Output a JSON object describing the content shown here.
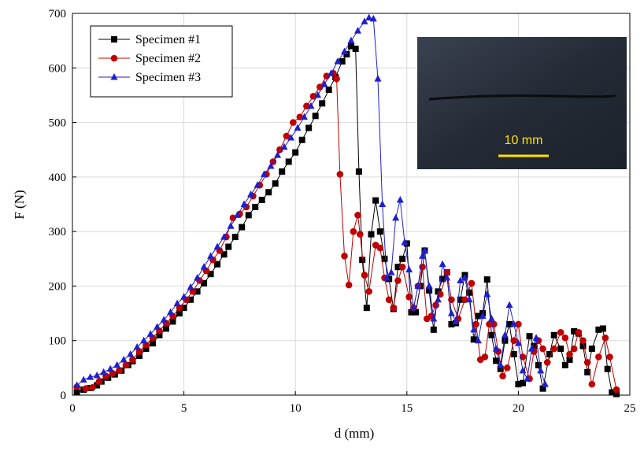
{
  "chart_data": {
    "type": "line",
    "x_label": "d (mm)",
    "y_label": "F (N)",
    "xlim": [
      0,
      25
    ],
    "xticks": [
      0,
      5,
      10,
      15,
      20,
      25
    ],
    "ylim": [
      0,
      700
    ],
    "yticks": [
      0,
      100,
      200,
      300,
      400,
      500,
      600,
      700
    ],
    "grid": true,
    "legend": "upper left",
    "inset_label": "10 mm",
    "series": [
      {
        "name": "Specimen #1",
        "color": "#000000",
        "marker": "square",
        "x": [
          0.2,
          0.5,
          0.8,
          1.1,
          1.3,
          1.6,
          1.9,
          2.2,
          2.5,
          2.7,
          3.0,
          3.3,
          3.6,
          3.9,
          4.2,
          4.5,
          4.8,
          5.0,
          5.3,
          5.6,
          5.9,
          6.2,
          6.5,
          6.8,
          7.0,
          7.3,
          7.6,
          7.9,
          8.2,
          8.5,
          8.8,
          9.1,
          9.4,
          9.7,
          10.0,
          10.3,
          10.6,
          10.9,
          11.2,
          11.5,
          11.8,
          12.1,
          12.3,
          12.5,
          12.7,
          12.85,
          13.0,
          13.2,
          13.4,
          13.6,
          13.8,
          14.0,
          14.2,
          14.4,
          14.6,
          14.8,
          15.0,
          15.2,
          15.4,
          15.6,
          15.8,
          16.0,
          16.2,
          16.4,
          16.6,
          16.8,
          17.0,
          17.2,
          17.4,
          17.6,
          17.8,
          18.0,
          18.2,
          18.4,
          18.6,
          18.8,
          19.0,
          19.2,
          19.4,
          19.6,
          19.8,
          20.0,
          20.2,
          20.5,
          20.7,
          20.9,
          21.1,
          21.4,
          21.6,
          21.9,
          22.1,
          22.3,
          22.5,
          22.7,
          22.9,
          23.1,
          23.3,
          23.6,
          23.8,
          24.0,
          24.2,
          24.4
        ],
        "values": [
          5,
          10,
          13,
          18,
          25,
          32,
          38,
          45,
          55,
          62,
          72,
          85,
          95,
          110,
          122,
          135,
          150,
          160,
          175,
          190,
          205,
          222,
          240,
          258,
          272,
          290,
          308,
          330,
          345,
          358,
          372,
          388,
          410,
          428,
          445,
          468,
          490,
          512,
          535,
          560,
          583,
          612,
          625,
          640,
          635,
          410,
          248,
          160,
          295,
          357,
          300,
          250,
          213,
          158,
          235,
          250,
          278,
          152,
          152,
          200,
          265,
          192,
          120,
          190,
          213,
          225,
          130,
          132,
          175,
          220,
          188,
          102,
          145,
          150,
          212,
          110,
          63,
          48,
          100,
          130,
          75,
          20,
          22,
          108,
          90,
          55,
          12,
          75,
          110,
          85,
          55,
          65,
          117,
          113,
          90,
          42,
          85,
          120,
          122,
          48,
          5,
          2
        ]
      },
      {
        "name": "Specimen #2",
        "color": "#c00000",
        "marker": "circle",
        "x": [
          0.2,
          0.6,
          0.9,
          1.2,
          1.5,
          1.8,
          2.1,
          2.4,
          2.7,
          3.0,
          3.3,
          3.6,
          3.9,
          4.2,
          4.5,
          4.8,
          5.1,
          5.4,
          5.7,
          6.0,
          6.3,
          6.6,
          6.9,
          7.2,
          7.5,
          7.8,
          8.1,
          8.4,
          8.7,
          9.0,
          9.3,
          9.6,
          9.9,
          10.2,
          10.5,
          10.8,
          11.1,
          11.4,
          11.7,
          11.85,
          12.0,
          12.2,
          12.4,
          12.6,
          12.8,
          12.9,
          13.1,
          13.3,
          13.6,
          13.8,
          14.0,
          14.2,
          14.4,
          14.6,
          14.8,
          15.1,
          15.3,
          15.5,
          15.7,
          15.9,
          16.1,
          16.3,
          16.5,
          16.8,
          17.0,
          17.3,
          17.6,
          17.9,
          18.1,
          18.3,
          18.5,
          18.7,
          18.9,
          19.1,
          19.3,
          19.5,
          19.8,
          20.0,
          20.2,
          20.5,
          20.7,
          20.9,
          21.1,
          21.3,
          21.6,
          21.9,
          22.1,
          22.3,
          22.5,
          22.7,
          22.9,
          23.1,
          23.3,
          23.6,
          23.9,
          24.1,
          24.4
        ],
        "values": [
          15,
          12,
          14,
          25,
          35,
          40,
          45,
          55,
          65,
          80,
          92,
          105,
          118,
          132,
          145,
          160,
          175,
          190,
          210,
          228,
          248,
          265,
          290,
          325,
          332,
          345,
          365,
          385,
          405,
          428,
          450,
          475,
          500,
          510,
          530,
          548,
          565,
          585,
          590,
          580,
          405,
          255,
          202,
          300,
          330,
          295,
          220,
          190,
          275,
          270,
          215,
          175,
          160,
          210,
          235,
          180,
          160,
          200,
          235,
          140,
          145,
          165,
          185,
          225,
          175,
          140,
          175,
          205,
          130,
          65,
          70,
          130,
          130,
          80,
          35,
          50,
          100,
          130,
          70,
          30,
          80,
          100,
          85,
          60,
          85,
          115,
          105,
          75,
          85,
          115,
          100,
          60,
          20,
          70,
          105,
          70,
          10
        ]
      },
      {
        "name": "Specimen #3",
        "color": "#1f1fcc",
        "marker": "triangle",
        "x": [
          0.2,
          0.5,
          0.8,
          1.1,
          1.4,
          1.7,
          2.0,
          2.3,
          2.6,
          2.9,
          3.2,
          3.5,
          3.8,
          4.1,
          4.4,
          4.7,
          5.0,
          5.3,
          5.6,
          5.9,
          6.2,
          6.5,
          6.8,
          7.1,
          7.4,
          7.7,
          8.0,
          8.3,
          8.6,
          8.9,
          9.2,
          9.5,
          9.8,
          10.1,
          10.4,
          10.7,
          11.0,
          11.3,
          11.6,
          11.9,
          12.2,
          12.5,
          12.8,
          13.1,
          13.3,
          13.5,
          13.7,
          13.9,
          14.1,
          14.3,
          14.5,
          14.7,
          14.9,
          15.1,
          15.3,
          15.5,
          15.7,
          15.8,
          16.0,
          16.2,
          16.4,
          16.6,
          16.8,
          17.0,
          17.2,
          17.4,
          17.6,
          17.8,
          18.0,
          18.2,
          18.4,
          18.6,
          18.8,
          19.0,
          19.2,
          19.4,
          19.6,
          19.8,
          20.0,
          20.2,
          20.4,
          20.6,
          20.8,
          21.0,
          21.2
        ],
        "values": [
          18,
          28,
          33,
          36,
          42,
          48,
          55,
          65,
          75,
          88,
          100,
          112,
          125,
          138,
          152,
          168,
          180,
          198,
          215,
          235,
          255,
          272,
          290,
          310,
          330,
          350,
          368,
          385,
          405,
          420,
          440,
          455,
          472,
          490,
          510,
          530,
          550,
          570,
          590,
          612,
          630,
          650,
          668,
          685,
          692,
          690,
          580,
          350,
          215,
          225,
          325,
          358,
          280,
          230,
          160,
          200,
          255,
          265,
          200,
          140,
          175,
          240,
          215,
          150,
          135,
          210,
          215,
          175,
          120,
          100,
          145,
          185,
          140,
          85,
          55,
          110,
          165,
          130,
          95,
          45,
          30,
          85,
          105,
          45,
          20
        ]
      }
    ]
  }
}
